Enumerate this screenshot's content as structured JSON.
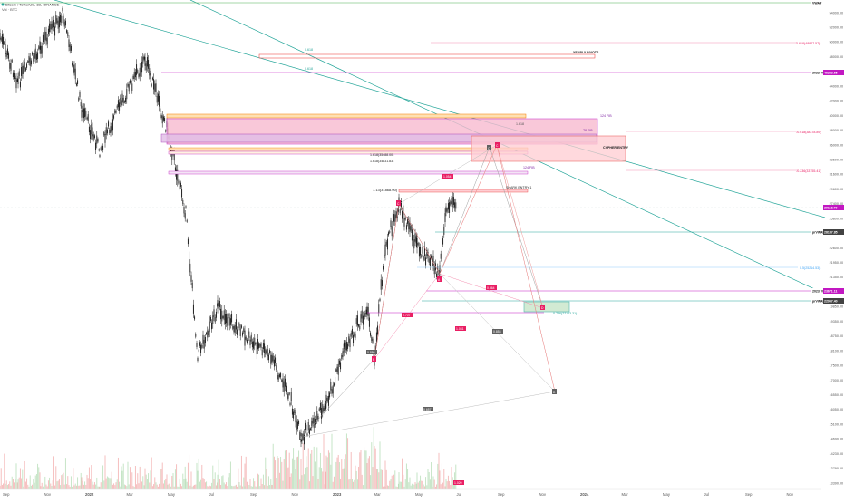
{
  "header": {
    "symbol_line": "Bitcoin / TetherUS, 1D, BINANCE",
    "vol_line": "Vol · BTC"
  },
  "colors": {
    "up": "#26a69a",
    "down": "#ef5350",
    "candle": "#111111",
    "pink": "#e91e63",
    "magenta": "#c218c2",
    "orange": "#f57c00",
    "green_line": "#26a69a",
    "red_zone": "#ff8a8a",
    "gray": "#757575"
  },
  "price_axis": {
    "ticks": [
      "54000.00",
      "52000.00",
      "50000.00",
      "48000.00",
      "46000.00",
      "44000.00",
      "42000.00",
      "40000.00",
      "38000.00",
      "36000.00",
      "33600.00",
      "31600.00",
      "29600.00",
      "27400.00",
      "25800.00",
      "24200.00",
      "22600.00",
      "21950.00",
      "21350.00",
      "20550.00",
      "19850.00",
      "19350.00",
      "18750.00",
      "18100.00",
      "17500.00",
      "17000.00",
      "16550.00",
      "16050.00",
      "15100.00",
      "14690.00",
      "14230.00",
      "13790.00",
      "13390.00"
    ],
    "badges": [
      {
        "text": "VWAP",
        "style": "white"
      },
      {
        "text": "2022 VWAP",
        "style": "white"
      },
      {
        "text": "2023 VWAP",
        "style": "white"
      },
      {
        "text": "prVWAP",
        "style": "white"
      },
      {
        "text": "prVWAP",
        "style": "white"
      },
      {
        "text": "46242.65",
        "style": "magenta"
      },
      {
        "text": "29118.70",
        "style": "magenta"
      },
      {
        "text": "28187.85",
        "style": "dark"
      },
      {
        "text": "23671.11",
        "style": "magenta"
      },
      {
        "text": "22967.40",
        "style": "dark"
      }
    ]
  },
  "time_axis": {
    "labels": [
      "Sep",
      "Nov",
      "2022",
      "Mar",
      "May",
      "Jul",
      "Sep",
      "Nov",
      "2023",
      "Mar",
      "May",
      "Jul",
      "Sep",
      "Nov",
      "2024",
      "Mar",
      "May",
      "Jul",
      "Sep",
      "Nov"
    ]
  },
  "annotations": {
    "fib_0618_top": "0.618",
    "fib_0618_mid": "0.618",
    "yearly_pivots": "YEARLY PIVOTS",
    "fib_ext_1": "1.618(48827.57)",
    "fib_ext_2": "-0.618(38378.89)",
    "fib_ext_3": "-0.236(33755.41)",
    "fib_1618a": "1.618(35488.00)",
    "fib_1618b": "1.618(34831.83)",
    "fib_113": "1.13(31868.00)",
    "shark_entry": "SHARK ENTRY 1",
    "cypher_entry": "CYPHER ENTRY",
    "lvl_124_top": "124 FIB",
    "lvl_124_mid": "124 FIB",
    "lvl_78": "78 FIB",
    "lvl_1618": "1.618",
    "fib_05": "0.5(25214.53)",
    "fib_0786": "0.786(22163.31)",
    "lbl_0886": "0.886",
    "lbl_0707": "0.707",
    "lbl_0864": "0.864",
    "lbl_1041": "1.041",
    "lbl_0853": "0.853",
    "lbl_0657": "0.657",
    "lbl_1054": "1.054",
    "lbl_1020": "1.020",
    "lbl_b": "B",
    "lbl_c": "C",
    "lbl_x": "X",
    "lbl_a": "A",
    "lbl_d1": "D",
    "lbl_d2": "D",
    "lbl_cb": "C",
    "lbl_c2": "C"
  },
  "chart_data": {
    "type": "candlestick",
    "symbol": "Bitcoin / TetherUS",
    "interval": "1D",
    "exchange": "BINANCE",
    "ylim": [
      13390,
      54000
    ],
    "levels": {
      "2022 VWAP": 46242.65,
      "prVWAP_1": 28187.85,
      "2023 VWAP": 23671.11,
      "prVWAP_2": 22967.4,
      "last_price": 29118.7
    },
    "swings": [
      {
        "date": "2021-11",
        "price": 69000
      },
      {
        "date": "2022-03",
        "price": 48000
      },
      {
        "date": "2022-06",
        "price": 17600
      },
      {
        "date": "2022-11",
        "price": 15500
      },
      {
        "date": "2023-03",
        "price": 19550
      },
      {
        "date": "2023-04",
        "price": 31000
      },
      {
        "date": "2023-06",
        "price": 24800
      },
      {
        "date": "2023-07",
        "price": 31500
      }
    ]
  }
}
